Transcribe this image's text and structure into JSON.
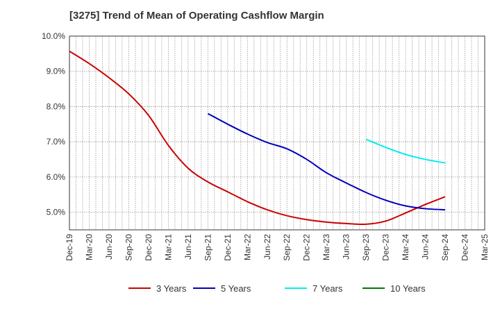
{
  "chart_data": {
    "type": "line",
    "title": "[3275]  Trend of Mean of Operating Cashflow Margin",
    "xlabel": "",
    "ylabel": "",
    "ylim": [
      4.5,
      10.0
    ],
    "y_ticks": [
      5.0,
      6.0,
      7.0,
      8.0,
      9.0,
      10.0
    ],
    "y_tick_labels": [
      "5.0%",
      "6.0%",
      "7.0%",
      "8.0%",
      "9.0%",
      "10.0%"
    ],
    "x": [
      "Dec-19",
      "Mar-20",
      "Jun-20",
      "Sep-20",
      "Dec-20",
      "Mar-21",
      "Jun-21",
      "Sep-21",
      "Dec-21",
      "Mar-22",
      "Jun-22",
      "Sep-22",
      "Dec-22",
      "Mar-23",
      "Jun-23",
      "Sep-23",
      "Dec-23",
      "Mar-24",
      "Jun-24",
      "Sep-24",
      "Dec-24",
      "Mar-25"
    ],
    "x_tick_labels": [
      "Dec-19",
      "Mar-20",
      "Jun-20",
      "Sep-20",
      "Dec-20",
      "Mar-21",
      "Jun-21",
      "Sep-21",
      "Dec-21",
      "Mar-22",
      "Jun-22",
      "Sep-22",
      "Dec-22",
      "Mar-23",
      "Jun-23",
      "Sep-23",
      "Dec-23",
      "Mar-24",
      "Jun-24",
      "Sep-24",
      "Dec-24",
      "Mar-25"
    ],
    "grid": true,
    "legend_position": "bottom",
    "series": [
      {
        "name": "3 Years",
        "color": "#cc0000",
        "values": [
          9.57,
          9.22,
          8.82,
          8.36,
          7.75,
          6.9,
          6.25,
          5.86,
          5.58,
          5.3,
          5.07,
          4.9,
          4.79,
          4.72,
          4.68,
          4.66,
          4.75,
          4.98,
          5.22,
          5.44,
          null,
          null
        ]
      },
      {
        "name": "5 Years",
        "color": "#0000bb",
        "values": [
          null,
          null,
          null,
          null,
          null,
          null,
          null,
          7.8,
          7.5,
          7.22,
          6.98,
          6.8,
          6.5,
          6.12,
          5.83,
          5.56,
          5.34,
          5.18,
          5.1,
          5.07,
          null,
          null
        ]
      },
      {
        "name": "7 Years",
        "color": "#00eeee",
        "values": [
          null,
          null,
          null,
          null,
          null,
          null,
          null,
          null,
          null,
          null,
          null,
          null,
          null,
          null,
          null,
          7.07,
          6.84,
          6.64,
          6.5,
          6.4,
          null,
          null
        ]
      },
      {
        "name": "10 Years",
        "color": "#007700",
        "values": [
          null,
          null,
          null,
          null,
          null,
          null,
          null,
          null,
          null,
          null,
          null,
          null,
          null,
          null,
          null,
          null,
          null,
          null,
          null,
          null,
          null,
          null
        ]
      }
    ]
  }
}
